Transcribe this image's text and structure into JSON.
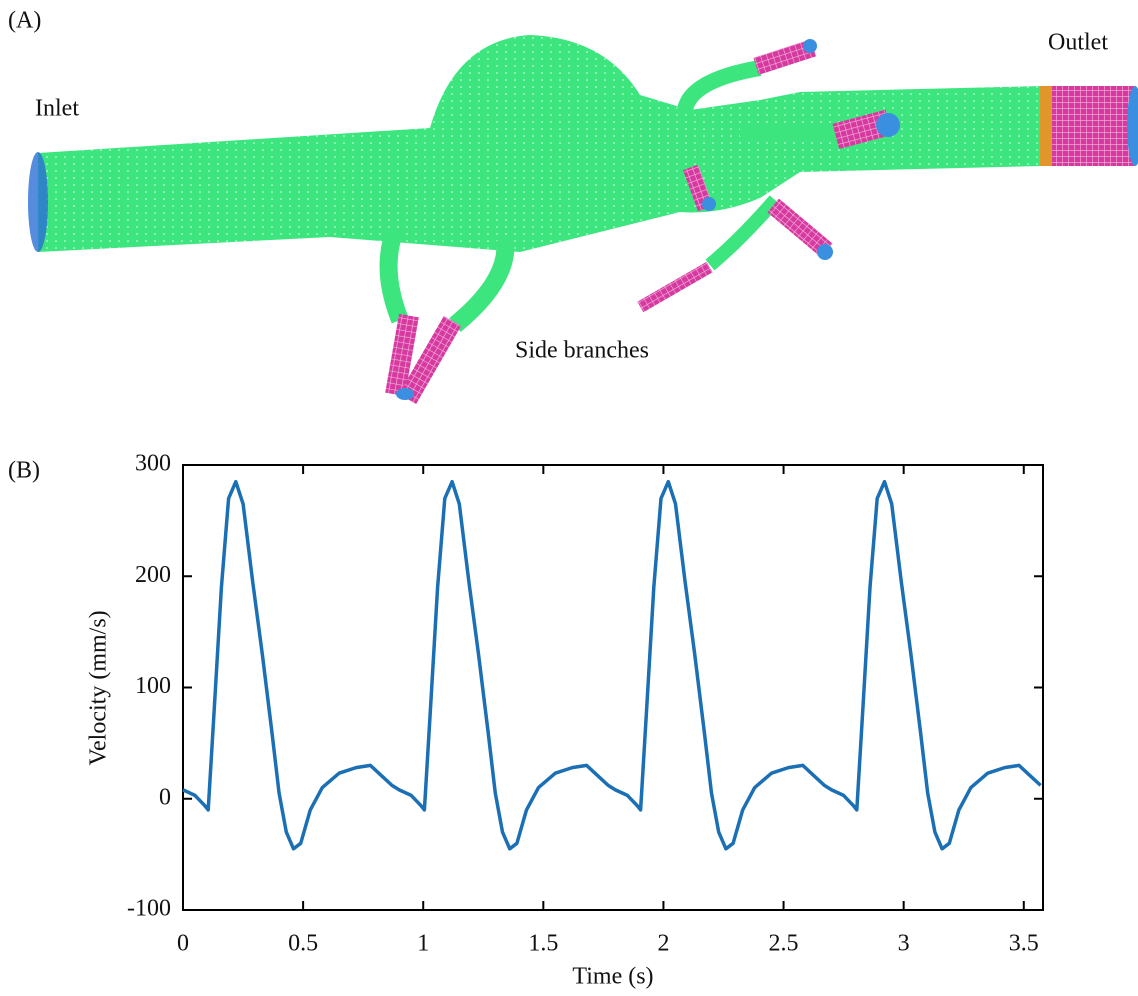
{
  "panel_a": {
    "label": "(A)",
    "annotations": {
      "inlet": "Inlet",
      "outlet": "Outlet",
      "side_branches": "Side branches"
    }
  },
  "chart_data": {
    "type": "line",
    "panel_label": "(B)",
    "xlabel": "Time (s)",
    "ylabel": "Velocity (mm/s)",
    "x": [
      0,
      0.05,
      0.09,
      0.105,
      0.13,
      0.16,
      0.19,
      0.22,
      0.25,
      0.29,
      0.33,
      0.37,
      0.4,
      0.43,
      0.46,
      0.49,
      0.53,
      0.58,
      0.65,
      0.72,
      0.78,
      0.82,
      0.87,
      0.9,
      0.95,
      0.99,
      1.005,
      1.03,
      1.06,
      1.09,
      1.12,
      1.15,
      1.19,
      1.23,
      1.27,
      1.3,
      1.33,
      1.36,
      1.39,
      1.43,
      1.48,
      1.55,
      1.62,
      1.68,
      1.72,
      1.77,
      1.8,
      1.85,
      1.89,
      1.905,
      1.93,
      1.96,
      1.99,
      2.02,
      2.05,
      2.09,
      2.13,
      2.17,
      2.2,
      2.23,
      2.26,
      2.29,
      2.33,
      2.38,
      2.45,
      2.52,
      2.58,
      2.62,
      2.67,
      2.7,
      2.75,
      2.79,
      2.805,
      2.83,
      2.86,
      2.89,
      2.92,
      2.95,
      2.99,
      3.03,
      3.07,
      3.1,
      3.13,
      3.16,
      3.19,
      3.23,
      3.28,
      3.35,
      3.42,
      3.48,
      3.52,
      3.57
    ],
    "values": [
      8,
      3,
      -6,
      -10,
      80,
      190,
      270,
      285,
      265,
      195,
      130,
      60,
      5,
      -30,
      -45,
      -40,
      -10,
      10,
      23,
      28,
      30,
      22,
      12,
      8,
      3,
      -6,
      -10,
      80,
      190,
      270,
      285,
      265,
      195,
      130,
      60,
      5,
      -30,
      -45,
      -40,
      -10,
      10,
      23,
      28,
      30,
      22,
      12,
      8,
      3,
      -6,
      -10,
      80,
      190,
      270,
      285,
      265,
      195,
      130,
      60,
      5,
      -30,
      -45,
      -40,
      -10,
      10,
      23,
      28,
      30,
      22,
      12,
      8,
      3,
      -6,
      -10,
      80,
      190,
      270,
      285,
      265,
      195,
      130,
      60,
      5,
      -30,
      -45,
      -40,
      -10,
      10,
      23,
      28,
      30,
      22,
      12
    ],
    "color": "#1a6fb5",
    "xlim": [
      0,
      3.58
    ],
    "ylim": [
      -100,
      300
    ],
    "xticks": [
      0,
      0.5,
      1,
      1.5,
      2,
      2.5,
      3,
      3.5
    ],
    "yticks": [
      -100,
      0,
      100,
      200,
      300
    ]
  }
}
